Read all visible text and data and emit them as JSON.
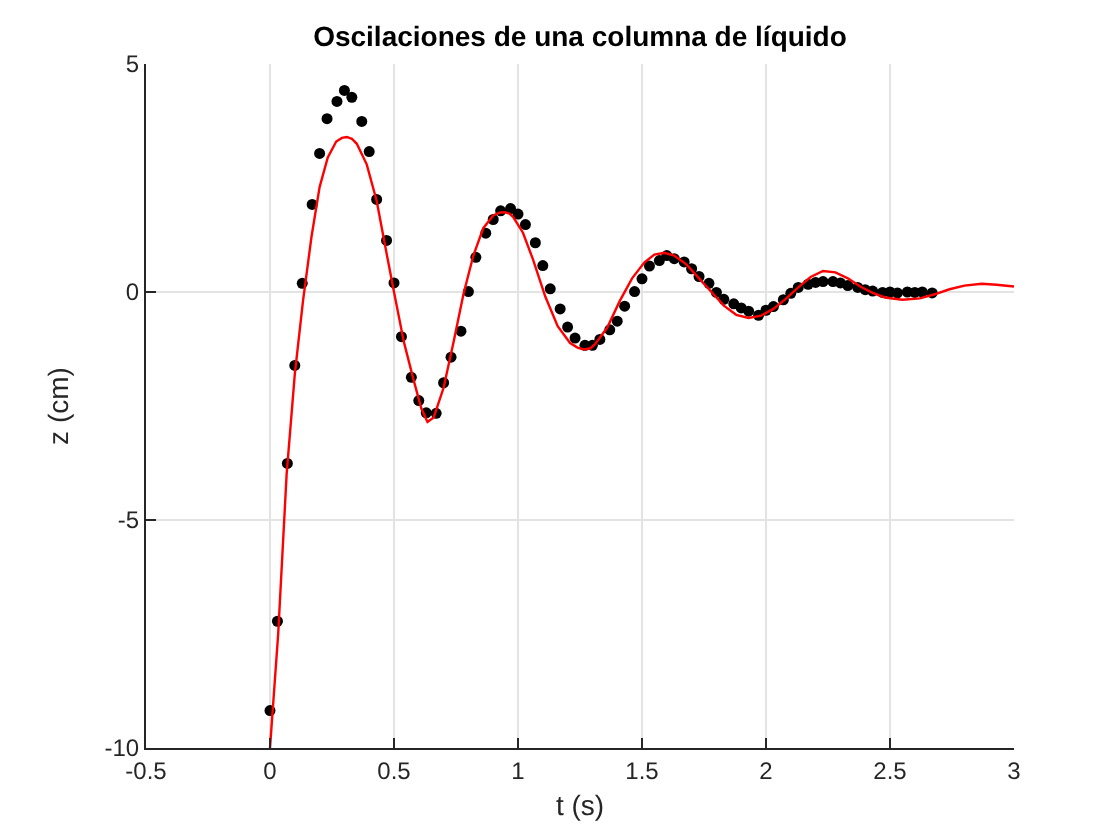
{
  "chart_data": {
    "type": "scatter",
    "title": "Oscilaciones de una columna de líquido",
    "xlabel": "t (s)",
    "ylabel": "z (cm)",
    "xlim": [
      -0.5,
      3
    ],
    "ylim": [
      -10,
      5
    ],
    "xticks": [
      -0.5,
      0,
      0.5,
      1,
      1.5,
      2,
      2.5,
      3
    ],
    "yticks": [
      -10,
      -5,
      0,
      5
    ],
    "grid": true,
    "series": [
      {
        "color": "#000000",
        "marker": "circle",
        "x": [
          0,
          0.03,
          0.07,
          0.1,
          0.13,
          0.17,
          0.2,
          0.23,
          0.27,
          0.3,
          0.33,
          0.37,
          0.4,
          0.43,
          0.47,
          0.5,
          0.53,
          0.57,
          0.6,
          0.63,
          0.67,
          0.7,
          0.73,
          0.77,
          0.8,
          0.83,
          0.87,
          0.9,
          0.93,
          0.97,
          1,
          1.03,
          1.07,
          1.1,
          1.13,
          1.17,
          1.2,
          1.23,
          1.27,
          1.3,
          1.33,
          1.37,
          1.4,
          1.43,
          1.47,
          1.5,
          1.53,
          1.57,
          1.6,
          1.63,
          1.67,
          1.7,
          1.73,
          1.77,
          1.8,
          1.83,
          1.87,
          1.9,
          1.93,
          1.97,
          2,
          2.03,
          2.07,
          2.1,
          2.13,
          2.17,
          2.2,
          2.23,
          2.27,
          2.3,
          2.33,
          2.37,
          2.4,
          2.43,
          2.47,
          2.5,
          2.53,
          2.57,
          2.6,
          2.63,
          2.67
        ],
        "values": [
          -9.18,
          -7.22,
          -3.76,
          -1.61,
          0.19,
          1.92,
          3.04,
          3.8,
          4.18,
          4.42,
          4.27,
          3.74,
          3.08,
          2.03,
          1.13,
          0.2,
          -0.98,
          -1.87,
          -2.38,
          -2.65,
          -2.66,
          -1.99,
          -1.43,
          -0.86,
          0.01,
          0.76,
          1.29,
          1.59,
          1.78,
          1.83,
          1.71,
          1.48,
          1.08,
          0.58,
          0.07,
          -0.37,
          -0.77,
          -1.01,
          -1.17,
          -1.17,
          -1.04,
          -0.83,
          -0.64,
          -0.31,
          0.01,
          0.29,
          0.57,
          0.69,
          0.8,
          0.73,
          0.66,
          0.51,
          0.34,
          0.19,
          -0.01,
          -0.16,
          -0.26,
          -0.35,
          -0.42,
          -0.51,
          -0.4,
          -0.32,
          -0.17,
          -0.03,
          0.1,
          0.17,
          0.21,
          0.23,
          0.23,
          0.2,
          0.14,
          0.1,
          0.05,
          0.02,
          -0.01,
          0,
          -0.02,
          0,
          -0.01,
          0,
          -0.02
        ]
      },
      {
        "type": "line",
        "color": "#ff0000",
        "marker": "none",
        "line_style": "solid",
        "x": [
          0,
          0.033,
          0.067,
          0.1,
          0.133,
          0.167,
          0.2,
          0.233,
          0.267,
          0.29,
          0.31,
          0.33,
          0.35,
          0.39,
          0.43,
          0.47,
          0.5,
          0.54,
          0.58,
          0.61,
          0.635,
          0.66,
          0.7,
          0.74,
          0.78,
          0.82,
          0.86,
          0.9,
          0.925,
          0.945,
          0.965,
          0.98,
          1.02,
          1.06,
          1.11,
          1.16,
          1.21,
          1.24,
          1.265,
          1.29,
          1.31,
          1.36,
          1.41,
          1.46,
          1.51,
          1.55,
          1.59,
          1.63,
          1.68,
          1.73,
          1.78,
          1.83,
          1.88,
          1.93,
          1.98,
          2.03,
          2.08,
          2.13,
          2.18,
          2.23,
          2.28,
          2.33,
          2.38,
          2.43,
          2.48,
          2.55,
          2.62,
          2.68,
          2.74,
          2.8,
          2.87,
          2.93,
          3
        ],
        "values": [
          -10,
          -7.5,
          -4,
          -1.8,
          -0.2,
          1.2,
          2.3,
          2.95,
          3.3,
          3.38,
          3.4,
          3.36,
          3.25,
          2.8,
          2,
          0.85,
          0,
          -1.1,
          -1.95,
          -2.55,
          -2.85,
          -2.75,
          -2.1,
          -1.1,
          -0.05,
          0.8,
          1.4,
          1.68,
          1.74,
          1.75,
          1.72,
          1.65,
          1.3,
          0.72,
          -0.1,
          -0.75,
          -1.12,
          -1.22,
          -1.26,
          -1.24,
          -1.15,
          -0.78,
          -0.2,
          0.3,
          0.65,
          0.82,
          0.86,
          0.8,
          0.6,
          0.3,
          0,
          -0.3,
          -0.5,
          -0.57,
          -0.52,
          -0.37,
          -0.15,
          0.1,
          0.33,
          0.46,
          0.43,
          0.3,
          0.12,
          -0.02,
          -0.12,
          -0.17,
          -0.14,
          -0.05,
          0.06,
          0.14,
          0.18,
          0.16,
          0.12
        ]
      }
    ]
  }
}
